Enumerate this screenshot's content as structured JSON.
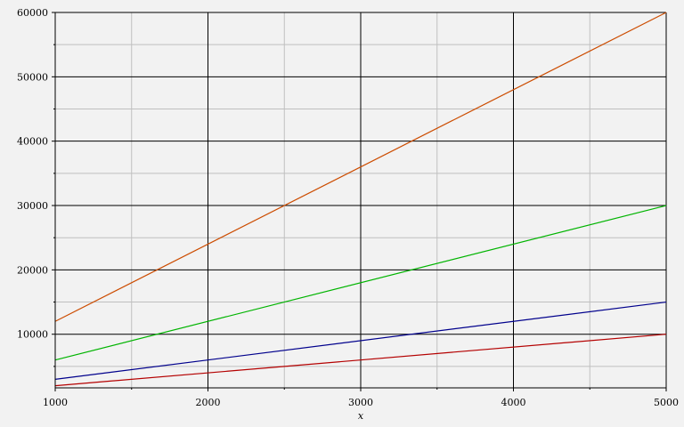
{
  "chart_data": {
    "type": "line",
    "title": "",
    "xlabel": "x",
    "ylabel": "",
    "xlim": [
      1000,
      5000
    ],
    "ylim": [
      1666.67,
      60000
    ],
    "grid": true,
    "legend": "none",
    "x_major_ticks": [
      1000,
      2000,
      3000,
      4000,
      5000
    ],
    "x_minor_ticks": [
      1500,
      2500,
      3500,
      4500
    ],
    "y_major_ticks": [
      10000,
      20000,
      30000,
      40000,
      50000,
      60000
    ],
    "y_minor_ticks": [
      5000,
      15000,
      25000,
      35000,
      45000,
      55000
    ],
    "x_tick_labels": [
      "1000",
      "2000",
      "3000",
      "4000",
      "5000"
    ],
    "y_tick_labels": [
      "10000",
      "20000",
      "30000",
      "40000",
      "50000",
      "60000"
    ],
    "series": [
      {
        "color": "#cc4c00",
        "x": [
          1000,
          5000
        ],
        "values": [
          12000,
          60000
        ]
      },
      {
        "color": "#00b400",
        "x": [
          1000,
          5000
        ],
        "values": [
          6000,
          30000
        ]
      },
      {
        "color": "#00008c",
        "x": [
          1000,
          5000
        ],
        "values": [
          3000,
          15000
        ]
      },
      {
        "color": "#b40000",
        "x": [
          1000,
          5000
        ],
        "values": [
          2000,
          10000
        ]
      }
    ]
  }
}
